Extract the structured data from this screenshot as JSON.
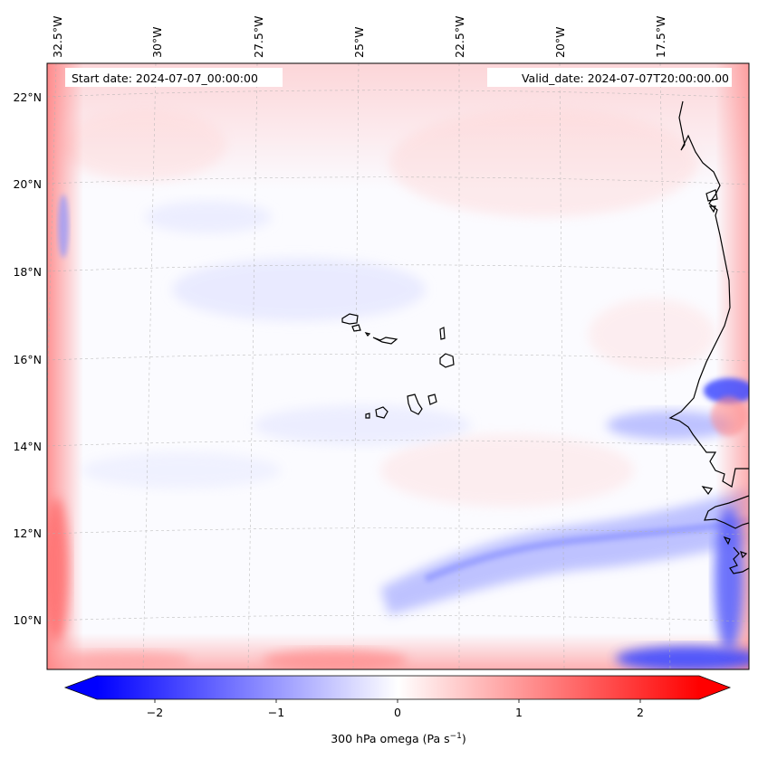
{
  "map": {
    "start_date": "Start date: 2024-07-07_00:00:00",
    "valid_date": "Valid_date: 2024-07-07T20:00:00.00",
    "lon_labels": [
      "32.5°W",
      "30°W",
      "27.5°W",
      "25°W",
      "22.5°W",
      "20°W",
      "17.5°W"
    ],
    "lat_labels": [
      "22°N",
      "20°N",
      "18°N",
      "16°N",
      "14°N",
      "12°N",
      "10°N"
    ],
    "colorbar": {
      "ticks": [
        "−2",
        "−1",
        "0",
        "1",
        "2"
      ],
      "label": "300 hPa omega (Pa s",
      "label_sup": "−1",
      "label_end": ")",
      "range": [
        -2.75,
        2.75
      ]
    },
    "colors": {
      "negative": "#0000ff",
      "zero": "#ffffff",
      "positive": "#ff0000",
      "coast": "#000000"
    }
  }
}
